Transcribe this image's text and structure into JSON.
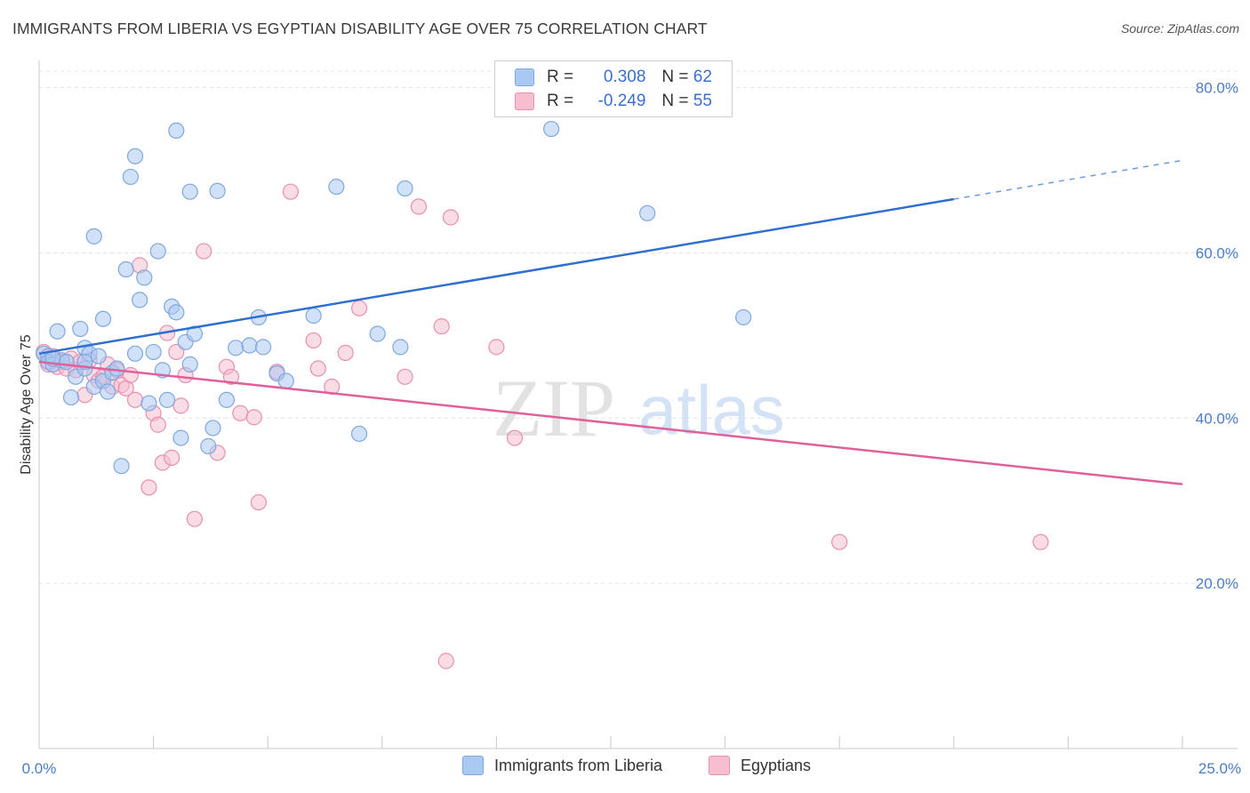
{
  "title": "IMMIGRANTS FROM LIBERIA VS EGYPTIAN DISABILITY AGE OVER 75 CORRELATION CHART",
  "source": "Source: ZipAtlas.com",
  "watermark": {
    "zip": "ZIP",
    "atlas": "atlas"
  },
  "colors": {
    "blue_fill": "#a9c8f2",
    "blue_stroke": "#7fa8e0",
    "blue_line": "#2f6fcf",
    "pink_fill": "#f6bfd0",
    "pink_stroke": "#e98fb0",
    "pink_line": "#e0609a",
    "tick_text": "#4a7cc9",
    "grid": "#e3e3e3"
  },
  "legend": {
    "rows": [
      {
        "r_label": "R =",
        "r_value": "0.308",
        "n_label": "N =",
        "n_value": "62",
        "color": "#a9c8f2"
      },
      {
        "r_label": "R =",
        "r_value": "-0.249",
        "n_label": "N =",
        "n_value": "55",
        "color": "#f6bfd0"
      }
    ]
  },
  "chart_data": {
    "type": "scatter",
    "title": "IMMIGRANTS FROM LIBERIA VS EGYPTIAN DISABILITY AGE OVER 75 CORRELATION CHART",
    "xlabel": "",
    "ylabel": "Disability Age Over 75",
    "xlim": [
      0,
      25
    ],
    "ylim": [
      0,
      82
    ],
    "x_tick_labels": [
      "0.0%",
      "25.0%"
    ],
    "y_ticks": [
      20,
      40,
      60,
      80
    ],
    "y_tick_labels": [
      "20.0%",
      "40.0%",
      "60.0%",
      "80.0%"
    ],
    "grid": true,
    "legend_position": "top-center",
    "series": [
      {
        "name": "Immigrants from Liberia",
        "color": "#a9c8f2",
        "trend": {
          "x0": 0,
          "y0": 47.8,
          "x1": 20,
          "y1": 66.5,
          "dash_to_x": 25,
          "dash_to_y": 71.2
        },
        "points": [
          [
            0.1,
            47.8
          ],
          [
            0.2,
            47.5
          ],
          [
            0.2,
            46.8
          ],
          [
            0.3,
            46.5
          ],
          [
            0.4,
            50.5
          ],
          [
            0.5,
            47.0
          ],
          [
            0.6,
            46.8
          ],
          [
            0.7,
            42.5
          ],
          [
            0.8,
            45.0
          ],
          [
            0.9,
            50.8
          ],
          [
            1.0,
            46.0
          ],
          [
            1.0,
            48.5
          ],
          [
            1.1,
            47.8
          ],
          [
            1.2,
            43.8
          ],
          [
            1.3,
            47.5
          ],
          [
            1.4,
            44.5
          ],
          [
            1.4,
            52.0
          ],
          [
            1.5,
            43.2
          ],
          [
            1.6,
            45.5
          ],
          [
            1.7,
            46.0
          ],
          [
            1.8,
            34.2
          ],
          [
            1.9,
            58.0
          ],
          [
            2.0,
            69.2
          ],
          [
            2.1,
            71.7
          ],
          [
            2.1,
            47.8
          ],
          [
            2.2,
            54.3
          ],
          [
            2.3,
            57.0
          ],
          [
            2.4,
            41.8
          ],
          [
            2.5,
            48.0
          ],
          [
            2.6,
            60.2
          ],
          [
            2.7,
            45.8
          ],
          [
            2.8,
            42.2
          ],
          [
            2.9,
            53.5
          ],
          [
            3.0,
            52.8
          ],
          [
            3.0,
            74.8
          ],
          [
            3.1,
            37.6
          ],
          [
            3.2,
            49.2
          ],
          [
            3.3,
            46.5
          ],
          [
            3.3,
            67.4
          ],
          [
            3.4,
            50.2
          ],
          [
            3.7,
            36.6
          ],
          [
            3.8,
            38.8
          ],
          [
            3.9,
            67.5
          ],
          [
            4.1,
            42.2
          ],
          [
            4.3,
            48.5
          ],
          [
            4.6,
            48.8
          ],
          [
            4.8,
            52.2
          ],
          [
            4.9,
            48.6
          ],
          [
            5.2,
            45.4
          ],
          [
            5.4,
            44.5
          ],
          [
            6.0,
            52.4
          ],
          [
            6.5,
            68.0
          ],
          [
            7.0,
            38.1
          ],
          [
            7.4,
            50.2
          ],
          [
            7.9,
            48.6
          ],
          [
            8.0,
            67.8
          ],
          [
            11.2,
            75.0
          ],
          [
            13.3,
            64.8
          ],
          [
            15.4,
            52.2
          ],
          [
            1.2,
            62.0
          ],
          [
            1.0,
            46.8
          ],
          [
            0.3,
            47.2
          ]
        ]
      },
      {
        "name": "Egyptians",
        "color": "#f6bfd0",
        "trend": {
          "x0": 0,
          "y0": 46.8,
          "x1": 25,
          "y1": 32.0
        },
        "points": [
          [
            0.1,
            48.0
          ],
          [
            0.2,
            46.5
          ],
          [
            0.3,
            47.5
          ],
          [
            0.4,
            46.2
          ],
          [
            0.5,
            46.8
          ],
          [
            0.6,
            46.0
          ],
          [
            0.7,
            47.2
          ],
          [
            0.8,
            45.8
          ],
          [
            0.9,
            46.8
          ],
          [
            1.0,
            42.8
          ],
          [
            1.1,
            47.0
          ],
          [
            1.2,
            45.2
          ],
          [
            1.3,
            44.5
          ],
          [
            1.4,
            45.0
          ],
          [
            1.5,
            46.5
          ],
          [
            1.6,
            43.8
          ],
          [
            1.7,
            45.8
          ],
          [
            1.8,
            44.0
          ],
          [
            1.9,
            43.6
          ],
          [
            2.0,
            45.2
          ],
          [
            2.1,
            42.2
          ],
          [
            2.2,
            58.5
          ],
          [
            2.4,
            31.6
          ],
          [
            2.5,
            40.6
          ],
          [
            2.6,
            39.2
          ],
          [
            2.7,
            34.6
          ],
          [
            2.8,
            50.3
          ],
          [
            2.9,
            35.2
          ],
          [
            3.0,
            48.0
          ],
          [
            3.1,
            41.5
          ],
          [
            3.2,
            45.2
          ],
          [
            3.4,
            27.8
          ],
          [
            3.6,
            60.2
          ],
          [
            3.9,
            35.8
          ],
          [
            4.1,
            46.2
          ],
          [
            4.2,
            45.0
          ],
          [
            4.4,
            40.6
          ],
          [
            4.7,
            40.1
          ],
          [
            4.8,
            29.8
          ],
          [
            5.2,
            45.6
          ],
          [
            5.5,
            67.4
          ],
          [
            6.0,
            49.4
          ],
          [
            6.1,
            46.0
          ],
          [
            6.4,
            43.8
          ],
          [
            6.7,
            47.9
          ],
          [
            7.0,
            53.3
          ],
          [
            8.0,
            45.0
          ],
          [
            8.3,
            65.6
          ],
          [
            8.8,
            51.1
          ],
          [
            8.9,
            10.6
          ],
          [
            9.0,
            64.3
          ],
          [
            10.0,
            48.6
          ],
          [
            10.4,
            37.6
          ],
          [
            17.5,
            25.0
          ],
          [
            21.9,
            25.0
          ]
        ]
      }
    ]
  },
  "bottom_legend": {
    "items": [
      {
        "label": "Immigrants from Liberia",
        "color": "#a9c8f2"
      },
      {
        "label": "Egyptians",
        "color": "#f6bfd0"
      }
    ]
  }
}
